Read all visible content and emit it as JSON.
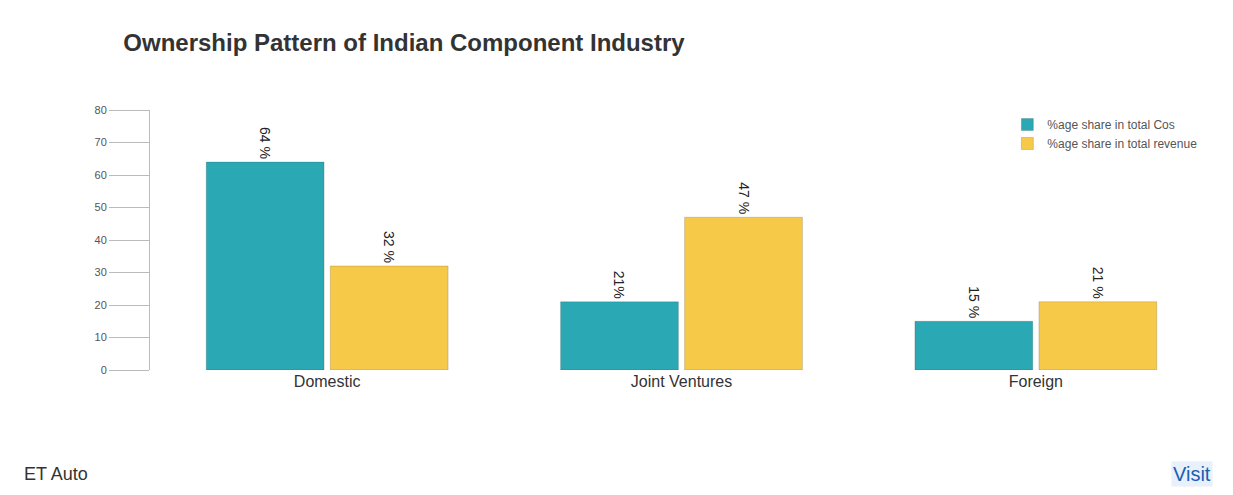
{
  "chart_data": {
    "type": "bar",
    "title": "Ownership Pattern of Indian Component Industry",
    "categories": [
      "Domestic",
      "Joint Ventures",
      "Foreign"
    ],
    "series": [
      {
        "name": "%age share in total Cos",
        "color": "#2aa9b5",
        "values": [
          64,
          21,
          15
        ],
        "value_labels": [
          "64 %",
          "21%",
          "15 %"
        ]
      },
      {
        "name": "%age share in total revenue",
        "color": "#f7c948",
        "values": [
          32,
          47,
          21
        ],
        "value_labels": [
          "32 %",
          "47 %",
          "21 %"
        ]
      }
    ],
    "ylim": [
      0,
      80
    ],
    "yticks": [
      0,
      10,
      20,
      30,
      40,
      50,
      60,
      70,
      80
    ],
    "grid": false,
    "legend": "top right",
    "data_labels": true,
    "annotations": [
      "ET Auto",
      "Visit"
    ]
  }
}
